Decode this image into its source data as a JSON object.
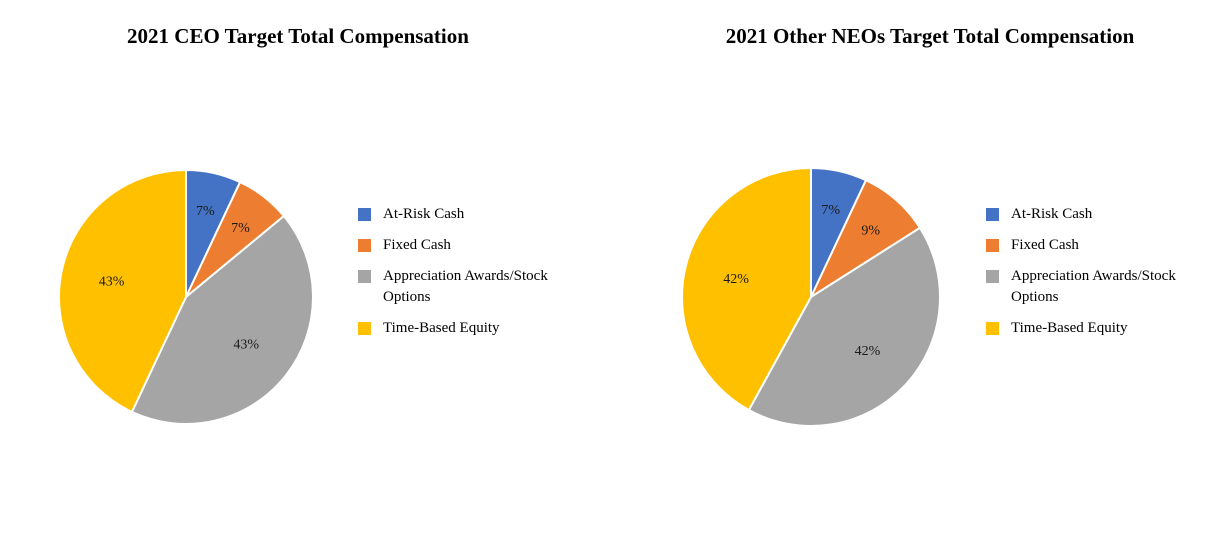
{
  "chart_data": [
    {
      "type": "pie",
      "title": "2021 CEO Target Total Compensation",
      "categories": [
        "At-Risk Cash",
        "Fixed Cash",
        "Appreciation Awards/Stock Options",
        "Time-Based Equity"
      ],
      "values": [
        7,
        7,
        43,
        43
      ],
      "labels": [
        "7%",
        "7%",
        "43%",
        "43%"
      ],
      "colors": [
        "#4472C4",
        "#ED7D31",
        "#A5A5A5",
        "#FFC000"
      ],
      "legend_position": "right"
    },
    {
      "type": "pie",
      "title": "2021 Other NEOs Target Total Compensation",
      "categories": [
        "At-Risk Cash",
        "Fixed Cash",
        "Appreciation Awards/Stock Options",
        "Time-Based Equity"
      ],
      "values": [
        7,
        9,
        42,
        42
      ],
      "labels": [
        "7%",
        "9%",
        "42%",
        "42%"
      ],
      "colors": [
        "#4472C4",
        "#ED7D31",
        "#A5A5A5",
        "#FFC000"
      ],
      "legend_position": "right"
    }
  ]
}
